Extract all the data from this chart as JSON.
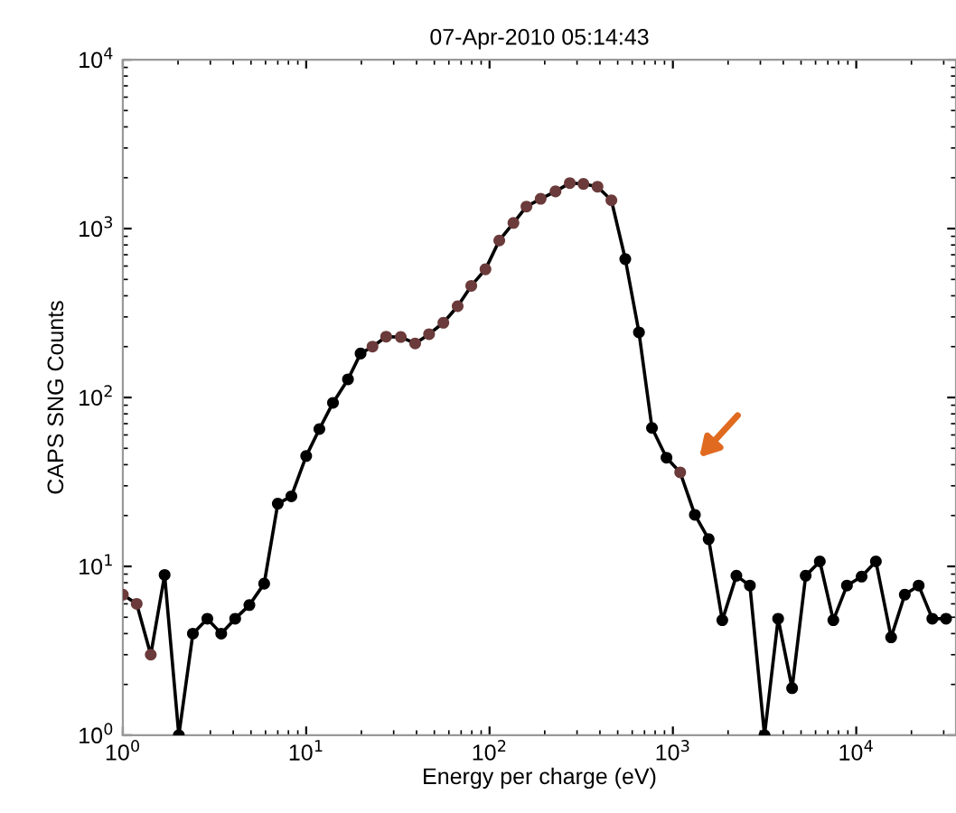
{
  "chart_data": {
    "type": "line",
    "title": "07-Apr-2010 05:14:43",
    "xlabel": "Energy per charge (eV)",
    "ylabel": "CAPS SNG Counts",
    "log": "xy",
    "xlim": [
      1,
      35000
    ],
    "ylim": [
      1,
      10000
    ],
    "xticks": [
      {
        "value": 1,
        "label": "10$^{0}$"
      },
      {
        "value": 10,
        "label": "10$^{1}$"
      },
      {
        "value": 100,
        "label": "10$^{2}$"
      },
      {
        "value": 1000,
        "label": "10$^{3}$"
      },
      {
        "value": 10000,
        "label": "10$^{4}$"
      }
    ],
    "yticks": [
      {
        "value": 1,
        "label": "10$^{0}$"
      },
      {
        "value": 10,
        "label": "10$^{1}$"
      },
      {
        "value": 100,
        "label": "10$^{2}$"
      },
      {
        "value": 1000,
        "label": "10$^{3}$"
      },
      {
        "value": 10000,
        "label": "10$^{4}$"
      }
    ],
    "grid": false,
    "marker": "circle",
    "line_style": "solid",
    "series": [
      {
        "color": "#000000",
        "x": [
          1,
          1.19,
          1.42,
          1.69,
          2.02,
          2.41,
          2.89,
          3.44,
          4.1,
          4.9,
          5.9,
          7.0,
          8.3,
          10,
          11.8,
          14,
          16.9,
          19.8,
          23,
          27.3,
          32.8,
          39.3,
          46.8,
          56,
          67,
          79.5,
          95,
          113,
          135,
          159,
          190,
          229,
          274,
          325,
          388,
          462,
          550,
          653,
          769,
          923,
          1096,
          1318,
          1567,
          1860,
          2220,
          2630,
          3160,
          3750,
          4470,
          5300,
          6330,
          7500,
          8900,
          10700,
          12800,
          15500,
          18400,
          21900,
          26000,
          30900
        ],
        "values": [
          6.8,
          6.0,
          3.0,
          8.9,
          1,
          4.0,
          4.9,
          4.0,
          4.9,
          5.9,
          7.9,
          23.5,
          26,
          45,
          65,
          93,
          128,
          182,
          200,
          229,
          228,
          209,
          237,
          277,
          347,
          458,
          574,
          850,
          1080,
          1350,
          1500,
          1660,
          1860,
          1840,
          1770,
          1470,
          660,
          243,
          66,
          44,
          36,
          20.2,
          14.5,
          4.8,
          8.8,
          7.7,
          1,
          4.9,
          1.9,
          8.8,
          10.7,
          4.8,
          7.7,
          8.7,
          10.7,
          3.8,
          6.8,
          7.7,
          4.9,
          4.9
        ],
        "colors": [
          "#6b3a3a",
          "#6b3a3a",
          "#6b3a3a",
          "#000000",
          "#000000",
          "#000000",
          "#000000",
          "#000000",
          "#000000",
          "#000000",
          "#000000",
          "#000000",
          "#000000",
          "#000000",
          "#000000",
          "#000000",
          "#000000",
          "#000000",
          "#6b3a3a",
          "#6b3a3a",
          "#6b3a3a",
          "#6b3a3a",
          "#6b3a3a",
          "#6b3a3a",
          "#6b3a3a",
          "#6b3a3a",
          "#6b3a3a",
          "#6b3a3a",
          "#6b3a3a",
          "#6b3a3a",
          "#6b3a3a",
          "#6b3a3a",
          "#6b3a3a",
          "#6b3a3a",
          "#6b3a3a",
          "#6b3a3a",
          "#000000",
          "#000000",
          "#000000",
          "#000000",
          "#6b3a3a",
          "#000000",
          "#000000",
          "#000000",
          "#000000",
          "#000000",
          "#000000",
          "#000000",
          "#000000",
          "#000000",
          "#000000",
          "#000000",
          "#000000",
          "#000000",
          "#000000",
          "#000000",
          "#000000",
          "#000000",
          "#000000",
          "#000000"
        ]
      }
    ]
  }
}
